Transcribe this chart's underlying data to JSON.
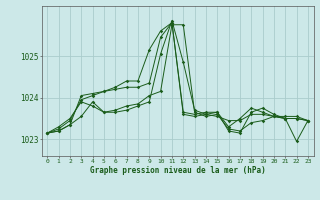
{
  "title": "Graphe pression niveau de la mer (hPa)",
  "background_color": "#cce8e8",
  "grid_color": "#aacccc",
  "line_color": "#1a5c1a",
  "spine_color": "#555555",
  "xlim": [
    -0.5,
    23.5
  ],
  "ylim": [
    1022.6,
    1026.2
  ],
  "yticks": [
    1023,
    1024,
    1025
  ],
  "xticks": [
    0,
    1,
    2,
    3,
    4,
    5,
    6,
    7,
    8,
    9,
    10,
    11,
    12,
    13,
    14,
    15,
    16,
    17,
    18,
    19,
    20,
    21,
    22,
    23
  ],
  "series": [
    [
      1023.15,
      1023.2,
      1023.35,
      1023.55,
      1023.9,
      1023.65,
      1023.7,
      1023.8,
      1023.85,
      1024.05,
      1024.15,
      1025.75,
      1025.75,
      1023.65,
      1023.55,
      1023.6,
      1023.25,
      1023.2,
      1023.4,
      1023.45,
      1023.55,
      1023.5,
      1022.95,
      1023.45
    ],
    [
      1023.15,
      1023.3,
      1023.5,
      1023.9,
      1023.8,
      1023.65,
      1023.65,
      1023.7,
      1023.8,
      1023.9,
      1025.05,
      1025.85,
      1024.85,
      1023.7,
      1023.6,
      1023.55,
      1023.45,
      1023.45,
      1023.6,
      1023.6,
      1023.55,
      1023.5,
      1023.5,
      1023.45
    ],
    [
      1023.15,
      1023.25,
      1023.45,
      1023.95,
      1024.05,
      1024.15,
      1024.25,
      1024.4,
      1024.4,
      1025.15,
      1025.6,
      1025.8,
      1023.6,
      1023.55,
      1023.6,
      1023.65,
      1023.2,
      1023.15,
      1023.65,
      1023.75,
      1023.6,
      1023.5,
      1023.5,
      1023.45
    ],
    [
      1023.15,
      1023.2,
      1023.35,
      1024.05,
      1024.1,
      1024.15,
      1024.2,
      1024.25,
      1024.25,
      1024.35,
      1025.45,
      1025.8,
      1023.65,
      1023.6,
      1023.65,
      1023.65,
      1023.3,
      1023.5,
      1023.75,
      1023.65,
      1023.55,
      1023.55,
      1023.55,
      1023.45
    ]
  ]
}
